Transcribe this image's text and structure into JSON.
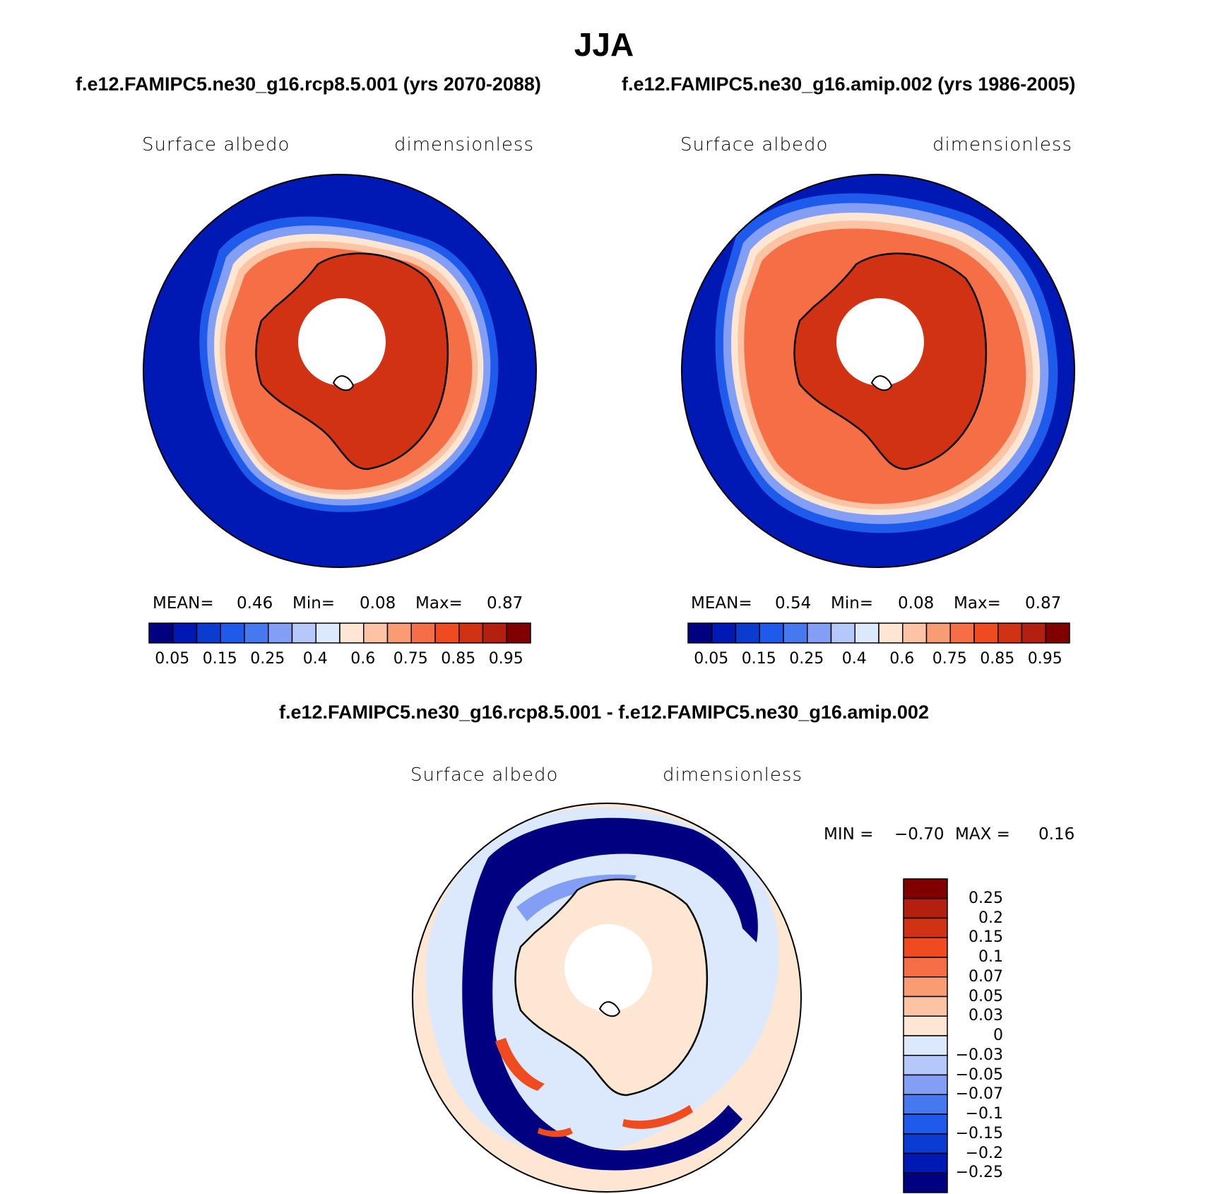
{
  "title": "JJA",
  "top_left": {
    "case": "f.e12.FAMIPC5.ne30_g16.rcp8.5.001 (yrs 2070-2088)",
    "variable": "Surface albedo",
    "units": "dimensionless",
    "stats": {
      "mean_label": "MEAN=",
      "mean": "0.46",
      "min_label": "Min=",
      "min": "0.08",
      "max_label": "Max=",
      "max": "0.87"
    }
  },
  "top_right": {
    "case": "f.e12.FAMIPC5.ne30_g16.amip.002 (yrs 1986-2005)",
    "variable": "Surface albedo",
    "units": "dimensionless",
    "stats": {
      "mean_label": "MEAN=",
      "mean": "0.54",
      "min_label": "Min=",
      "min": "0.08",
      "max_label": "Max=",
      "max": "0.87"
    }
  },
  "bottom": {
    "case": "f.e12.FAMIPC5.ne30_g16.rcp8.5.001 - f.e12.FAMIPC5.ne30_g16.amip.002",
    "variable": "Surface albedo",
    "units": "dimensionless",
    "stats": {
      "min_label": "MIN =",
      "min": "−0.70",
      "max_label": "MAX =",
      "max": "0.16"
    }
  },
  "colorbar_horizontal": {
    "colors": [
      "#000080",
      "#0019b4",
      "#0a3cd2",
      "#1e5aeb",
      "#4678f0",
      "#829ff5",
      "#b4c8fa",
      "#dce9fd",
      "#fde6d2",
      "#fcc3a5",
      "#f99b73",
      "#f56e46",
      "#f04b1e",
      "#d23214",
      "#b4200f",
      "#800000"
    ],
    "labels": [
      "0.05",
      "0.15",
      "0.25",
      "0.4",
      "0.6",
      "0.75",
      "0.85",
      "0.95"
    ]
  },
  "colorbar_vertical": {
    "colors": [
      "#800000",
      "#b4200f",
      "#d23214",
      "#f04b1e",
      "#f56e46",
      "#f99b73",
      "#fcc3a5",
      "#fde6d2",
      "#dce9fd",
      "#b4c8fa",
      "#829ff5",
      "#4678f0",
      "#1e5aeb",
      "#0a3cd2",
      "#0019b4",
      "#000080"
    ],
    "labels": [
      "0.25",
      "0.2",
      "0.15",
      "0.1",
      "0.07",
      "0.05",
      "0.03",
      "0",
      "−0.03",
      "−0.05",
      "−0.07",
      "−0.1",
      "−0.15",
      "−0.2",
      "−0.25"
    ]
  },
  "map_colors": {
    "ocean_deep": "#0019b4",
    "ice_edge_1": "#1e5aeb",
    "ice_edge_2": "#829ff5",
    "ice_edge_3": "#fde6d2",
    "ice_edge_4": "#fcc3a5",
    "sea_ice": "#f56e46",
    "sea_ice_dense": "#f04b1e",
    "continent": "#d23214",
    "diff_background": "#fde6d2",
    "diff_light_blue": "#dce9fd",
    "diff_dark_blue": "#000080",
    "diff_mid_blue": "#1e5aeb",
    "diff_red": "#f04b1e"
  }
}
